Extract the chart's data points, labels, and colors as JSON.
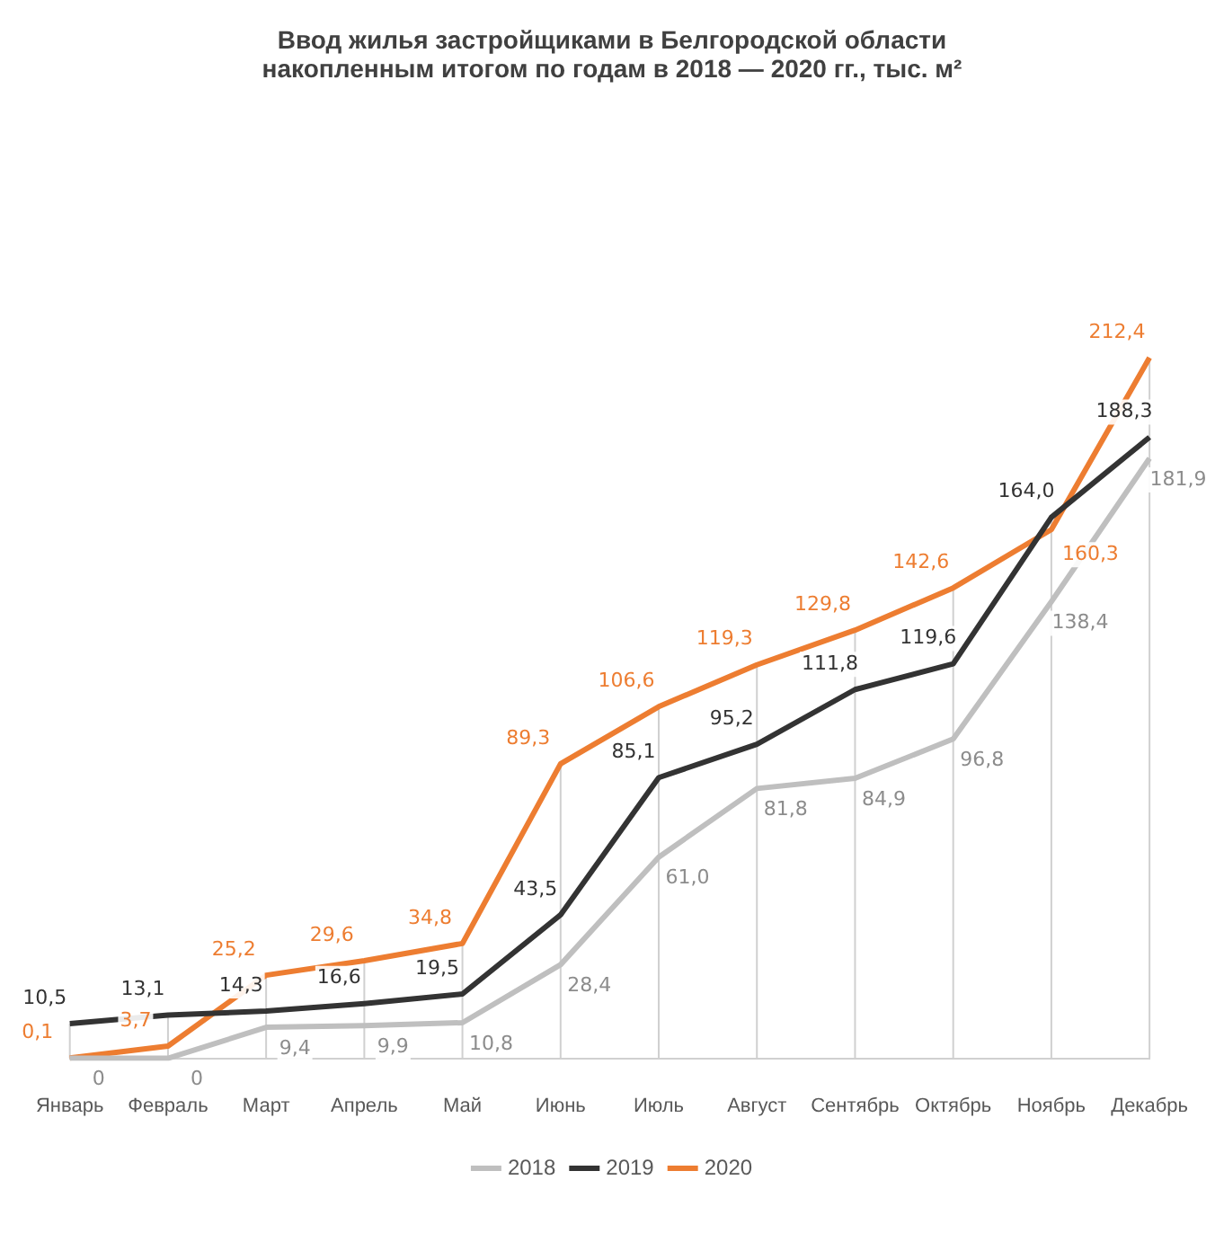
{
  "chart_data": {
    "type": "line",
    "title": "Ввод жилья застройщиками в Белгородской области\nнакопленным итогом по годам в 2018  — 2020 гг., тыс. м²",
    "categories": [
      "Январь",
      "Февраль",
      "Март",
      "Апрель",
      "Май",
      "Июнь",
      "Июль",
      "Август",
      "Сентябрь",
      "Октябрь",
      "Ноябрь",
      "Декабрь"
    ],
    "series": [
      {
        "name": "2018",
        "color": "#bfbfbf",
        "values": [
          0,
          0,
          9.4,
          9.9,
          10.8,
          28.4,
          61.0,
          81.8,
          84.9,
          96.8,
          138.4,
          181.9
        ],
        "value_labels": [
          "0",
          "0",
          "9,4",
          "9,9",
          "10,8",
          "28,4",
          "61,0",
          "81,8",
          "84,9",
          "96,8",
          "138,4",
          "181,9"
        ]
      },
      {
        "name": "2019",
        "color": "#333333",
        "values": [
          10.5,
          13.1,
          14.3,
          16.6,
          19.5,
          43.5,
          85.1,
          95.2,
          111.8,
          119.6,
          164.0,
          188.3
        ],
        "value_labels": [
          "10,5",
          "13,1",
          "14,3",
          "16,6",
          "19,5",
          "43,5",
          "85,1",
          "95,2",
          "111,8",
          "119,6",
          "164,0",
          "188,3"
        ]
      },
      {
        "name": "2020",
        "color": "#ed7d31",
        "values": [
          0.1,
          3.7,
          25.2,
          29.6,
          34.8,
          89.3,
          106.6,
          119.3,
          129.8,
          142.6,
          160.3,
          212.4
        ],
        "value_labels": [
          "0,1",
          "3,7",
          "25,2",
          "29,6",
          "34,8",
          "89,3",
          "106,6",
          "119,3",
          "129,8",
          "142,6",
          "160,3",
          "212,4"
        ]
      }
    ],
    "grid": "x",
    "legend": "bottom",
    "marker": "none",
    "line_style": "solid",
    "tick_labels": "x"
  }
}
